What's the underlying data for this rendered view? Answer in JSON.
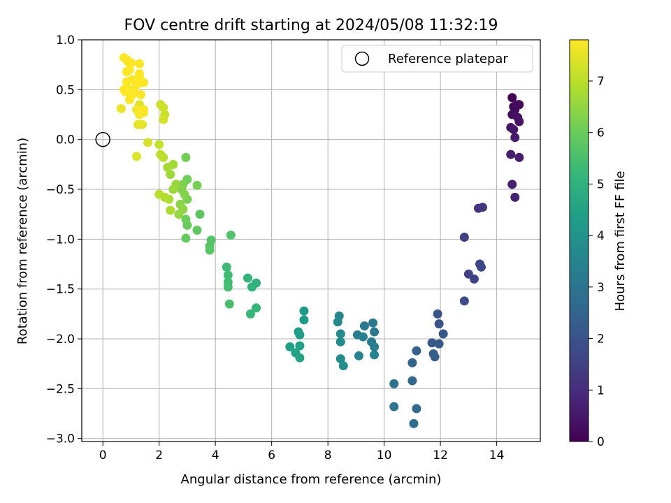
{
  "chart_data": {
    "type": "scatter",
    "title": "FOV centre drift starting at 2024/05/08 11:32:19",
    "xlabel": "Angular distance from reference (arcmin)",
    "ylabel": "Rotation from reference (arcmin)",
    "xlim": [
      -0.75,
      15.55
    ],
    "ylim": [
      -3.03,
      1.0
    ],
    "xticks": [
      0,
      2,
      4,
      6,
      8,
      10,
      12,
      14
    ],
    "xtick_labels": [
      "0",
      "2",
      "4",
      "6",
      "8",
      "10",
      "12",
      "14"
    ],
    "yticks": [
      1.0,
      0.5,
      0.0,
      -0.5,
      -1.0,
      -1.5,
      -2.0,
      -2.5,
      -3.0
    ],
    "ytick_labels": [
      "1.0",
      "0.5",
      "0.0",
      "−0.5",
      "−1.0",
      "−1.5",
      "−2.0",
      "−2.5",
      "−3.0"
    ],
    "grid": true,
    "legend": {
      "position": "top-right",
      "entries": [
        "Reference platepar"
      ]
    },
    "reference_point": {
      "x": 0,
      "y": 0,
      "marker": "open-circle"
    },
    "colorbar": {
      "label": "Hours from first FF file",
      "range": [
        0,
        7.8
      ],
      "ticks": [
        0,
        1,
        2,
        3,
        4,
        5,
        6,
        7
      ],
      "tick_labels": [
        "0",
        "1",
        "2",
        "3",
        "4",
        "5",
        "6",
        "7"
      ],
      "colormap": [
        "#440154",
        "#482878",
        "#3e4989",
        "#31688e",
        "#26828e",
        "#1f9e89",
        "#35b779",
        "#6ece58",
        "#b5de2b",
        "#fde725"
      ]
    },
    "points": [
      [
        14.55,
        0.42,
        0.05
      ],
      [
        14.6,
        0.33,
        0.1
      ],
      [
        14.75,
        0.35,
        0.15
      ],
      [
        14.65,
        0.3,
        0.2
      ],
      [
        14.8,
        0.35,
        0.25
      ],
      [
        14.55,
        0.25,
        0.3
      ],
      [
        14.75,
        0.22,
        0.35
      ],
      [
        14.8,
        0.18,
        0.4
      ],
      [
        14.5,
        0.12,
        0.45
      ],
      [
        14.6,
        0.1,
        0.5
      ],
      [
        14.65,
        0.02,
        0.55
      ],
      [
        14.5,
        -0.15,
        0.6
      ],
      [
        14.8,
        -0.18,
        0.65
      ],
      [
        14.55,
        -0.45,
        0.7
      ],
      [
        14.65,
        -0.58,
        0.75
      ],
      [
        13.35,
        -0.69,
        1.1
      ],
      [
        13.5,
        -0.68,
        1.2
      ],
      [
        12.85,
        -0.98,
        1.5
      ],
      [
        13.0,
        -1.35,
        1.55
      ],
      [
        13.2,
        -1.4,
        1.6
      ],
      [
        13.4,
        -1.25,
        1.65
      ],
      [
        13.45,
        -1.28,
        1.7
      ],
      [
        12.85,
        -1.62,
        1.8
      ],
      [
        11.9,
        -1.75,
        2.0
      ],
      [
        11.95,
        -1.85,
        2.05
      ],
      [
        12.1,
        -1.95,
        2.1
      ],
      [
        11.7,
        -2.04,
        2.15
      ],
      [
        11.95,
        -2.05,
        2.2
      ],
      [
        11.75,
        -2.15,
        2.25
      ],
      [
        11.8,
        -2.18,
        2.3
      ],
      [
        11.15,
        -2.12,
        2.4
      ],
      [
        11.0,
        -2.24,
        2.5
      ],
      [
        11.0,
        -2.42,
        2.6
      ],
      [
        11.15,
        -2.7,
        2.7
      ],
      [
        11.05,
        -2.85,
        2.8
      ],
      [
        10.35,
        -2.45,
        2.9
      ],
      [
        10.35,
        -2.68,
        2.95
      ],
      [
        9.6,
        -1.84,
        3.1
      ],
      [
        9.65,
        -1.93,
        3.15
      ],
      [
        9.3,
        -1.87,
        3.2
      ],
      [
        9.55,
        -2.03,
        3.25
      ],
      [
        9.65,
        -2.08,
        3.3
      ],
      [
        9.05,
        -1.96,
        3.35
      ],
      [
        9.25,
        -1.98,
        3.4
      ],
      [
        9.65,
        -2.16,
        3.45
      ],
      [
        9.1,
        -2.17,
        3.5
      ],
      [
        8.4,
        -1.77,
        3.6
      ],
      [
        8.35,
        -1.83,
        3.65
      ],
      [
        8.45,
        -1.95,
        3.7
      ],
      [
        8.45,
        -2.03,
        3.75
      ],
      [
        8.45,
        -2.2,
        3.8
      ],
      [
        8.55,
        -2.27,
        3.85
      ],
      [
        7.15,
        -1.72,
        4.2
      ],
      [
        7.15,
        -1.81,
        4.25
      ],
      [
        6.95,
        -1.93,
        4.3
      ],
      [
        7.0,
        -1.96,
        4.35
      ],
      [
        6.65,
        -2.08,
        4.4
      ],
      [
        7.0,
        -2.07,
        4.45
      ],
      [
        6.85,
        -2.14,
        4.5
      ],
      [
        7.0,
        -2.19,
        4.55
      ],
      [
        5.45,
        -1.44,
        5.0
      ],
      [
        5.3,
        -1.48,
        5.05
      ],
      [
        5.15,
        -1.39,
        5.1
      ],
      [
        5.45,
        -1.69,
        5.15
      ],
      [
        5.25,
        -1.75,
        5.2
      ],
      [
        4.4,
        -1.28,
        5.3
      ],
      [
        4.45,
        -1.36,
        5.35
      ],
      [
        4.45,
        -1.43,
        5.4
      ],
      [
        4.45,
        -1.48,
        5.45
      ],
      [
        4.5,
        -1.65,
        5.5
      ],
      [
        4.55,
        -0.96,
        5.6
      ],
      [
        3.85,
        -1.01,
        5.65
      ],
      [
        3.8,
        -1.07,
        5.7
      ],
      [
        3.8,
        -1.11,
        5.75
      ],
      [
        3.45,
        -0.75,
        5.8
      ],
      [
        3.35,
        -0.91,
        5.85
      ],
      [
        2.95,
        -0.99,
        5.9
      ],
      [
        3.0,
        -0.86,
        5.95
      ],
      [
        2.95,
        -0.8,
        6.0
      ],
      [
        3.0,
        -0.4,
        6.05
      ],
      [
        2.95,
        -0.18,
        6.1
      ],
      [
        3.35,
        -0.46,
        6.15
      ],
      [
        3.0,
        -0.6,
        6.2
      ],
      [
        2.85,
        -0.45,
        6.25
      ],
      [
        2.8,
        -0.5,
        6.3
      ],
      [
        2.9,
        -0.55,
        6.35
      ],
      [
        2.75,
        -0.65,
        6.4
      ],
      [
        2.85,
        -0.7,
        6.45
      ],
      [
        2.7,
        -0.75,
        6.5
      ],
      [
        2.6,
        -0.45,
        6.55
      ],
      [
        2.5,
        -0.5,
        6.6
      ],
      [
        2.4,
        -0.35,
        6.65
      ],
      [
        2.5,
        -0.25,
        6.7
      ],
      [
        2.3,
        -0.28,
        6.75
      ],
      [
        2.35,
        -0.6,
        6.8
      ],
      [
        2.4,
        -0.71,
        6.85
      ],
      [
        2.2,
        -0.58,
        6.9
      ],
      [
        2.0,
        -0.55,
        6.95
      ],
      [
        2.15,
        -0.18,
        7.0
      ],
      [
        2.05,
        -0.15,
        7.05
      ],
      [
        2.0,
        -0.05,
        7.1
      ],
      [
        2.2,
        0.25,
        7.15
      ],
      [
        2.05,
        0.35,
        7.2
      ],
      [
        2.15,
        0.32,
        7.25
      ],
      [
        2.15,
        0.2,
        7.3
      ],
      [
        1.6,
        -0.03,
        7.35
      ],
      [
        1.2,
        -0.17,
        7.4
      ],
      [
        1.3,
        0.35,
        7.45
      ],
      [
        1.25,
        0.15,
        7.5
      ],
      [
        1.4,
        0.15,
        7.55
      ],
      [
        0.65,
        0.31,
        7.6
      ],
      [
        1.2,
        0.3,
        7.65
      ],
      [
        1.45,
        0.3,
        7.7
      ],
      [
        1.3,
        0.25,
        7.75
      ],
      [
        1.45,
        0.27,
        7.75
      ],
      [
        1.05,
        0.45,
        7.8
      ],
      [
        1.2,
        0.55,
        7.8
      ],
      [
        1.3,
        0.62,
        7.8
      ],
      [
        1.3,
        0.66,
        7.8
      ],
      [
        1.3,
        0.76,
        7.8
      ],
      [
        1.45,
        0.57,
        7.8
      ],
      [
        0.85,
        0.58,
        7.8
      ],
      [
        0.95,
        0.5,
        7.8
      ],
      [
        0.75,
        0.5,
        7.8
      ],
      [
        0.85,
        0.68,
        7.8
      ],
      [
        0.95,
        0.7,
        7.8
      ],
      [
        1.0,
        0.77,
        7.8
      ],
      [
        0.85,
        0.8,
        7.8
      ],
      [
        0.75,
        0.82,
        7.8
      ],
      [
        0.9,
        0.78,
        7.8
      ],
      [
        1.05,
        0.6,
        7.8
      ],
      [
        0.8,
        0.48,
        7.8
      ],
      [
        1.1,
        0.5,
        7.8
      ],
      [
        0.95,
        0.4,
        7.8
      ],
      [
        1.35,
        0.45,
        7.8
      ]
    ]
  }
}
